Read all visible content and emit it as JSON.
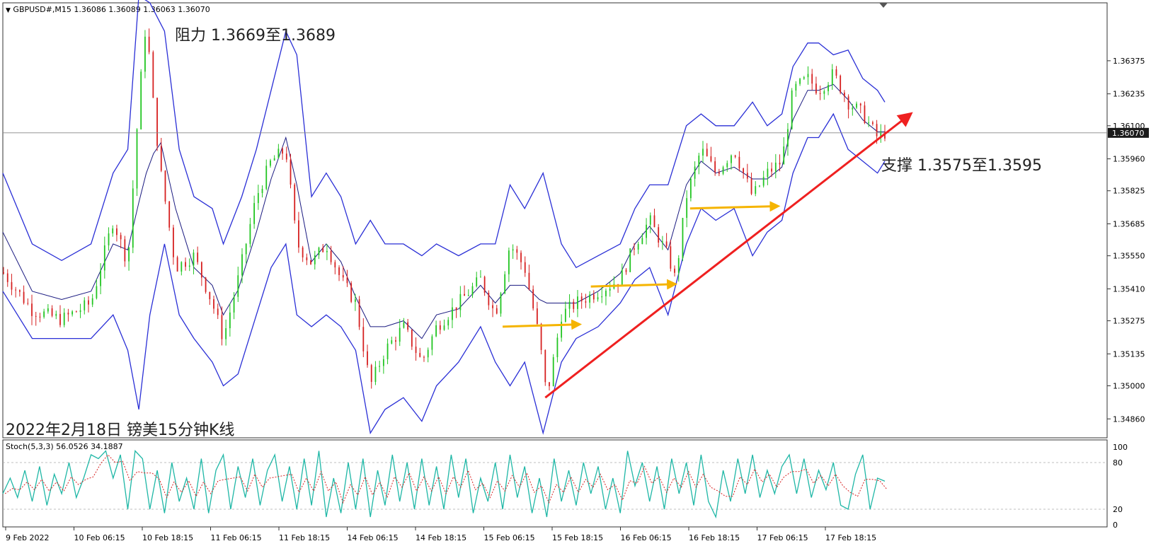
{
  "header": {
    "symbol_line": "GBPUSD#,M15  1.36086 1.36089 1.36063 1.36070"
  },
  "annotations": {
    "resistance": "阻力 1.3669至1.3689",
    "support": "支撑 1.3575至1.3595",
    "caption": "2022年2月18日 镑美15分钟K线"
  },
  "indicator": {
    "label": "Stoch(5,3,3) 56.0526 34.1887",
    "levels": [
      "100",
      "80",
      "20",
      "0"
    ]
  },
  "chart_data": {
    "type": "candlestick",
    "title": "GBPUSD#,M15",
    "current_price": "1.36070",
    "price_ticks": [
      "1.36375",
      "1.36235",
      "1.36100",
      "1.35960",
      "1.35825",
      "1.35685",
      "1.35550",
      "1.35410",
      "1.35275",
      "1.35135",
      "1.35000",
      "1.34860"
    ],
    "ylim": [
      1.3478,
      1.3662
    ],
    "x_labels": [
      "9 Feb 2022",
      "10 Feb 06:15",
      "10 Feb 18:15",
      "11 Feb 06:15",
      "11 Feb 18:15",
      "14 Feb 06:15",
      "14 Feb 18:15",
      "15 Feb 06:15",
      "15 Feb 18:15",
      "16 Feb 06:15",
      "16 Feb 18:15",
      "17 Feb 06:15",
      "17 Feb 18:15"
    ],
    "price_path": [
      [
        0,
        1.3548
      ],
      [
        40,
        1.3532
      ],
      [
        80,
        1.3528
      ],
      [
        120,
        1.3535
      ],
      [
        150,
        1.357
      ],
      [
        170,
        1.3552
      ],
      [
        185,
        1.362
      ],
      [
        195,
        1.3655
      ],
      [
        205,
        1.3618
      ],
      [
        215,
        1.359
      ],
      [
        235,
        1.355
      ],
      [
        260,
        1.3555
      ],
      [
        285,
        1.3535
      ],
      [
        300,
        1.352
      ],
      [
        320,
        1.3545
      ],
      [
        345,
        1.358
      ],
      [
        365,
        1.3595
      ],
      [
        385,
        1.36
      ],
      [
        400,
        1.356
      ],
      [
        420,
        1.3552
      ],
      [
        440,
        1.356
      ],
      [
        460,
        1.3545
      ],
      [
        480,
        1.3535
      ],
      [
        500,
        1.35
      ],
      [
        520,
        1.3515
      ],
      [
        545,
        1.3525
      ],
      [
        570,
        1.351
      ],
      [
        590,
        1.3525
      ],
      [
        620,
        1.3535
      ],
      [
        650,
        1.3545
      ],
      [
        670,
        1.353
      ],
      [
        690,
        1.356
      ],
      [
        710,
        1.355
      ],
      [
        730,
        1.352
      ],
      [
        740,
        1.3495
      ],
      [
        760,
        1.353
      ],
      [
        780,
        1.3535
      ],
      [
        810,
        1.354
      ],
      [
        840,
        1.3545
      ],
      [
        860,
        1.356
      ],
      [
        880,
        1.357
      ],
      [
        905,
        1.3555
      ],
      [
        915,
        1.3545
      ],
      [
        930,
        1.358
      ],
      [
        950,
        1.36
      ],
      [
        970,
        1.359
      ],
      [
        995,
        1.36
      ],
      [
        1020,
        1.358
      ],
      [
        1040,
        1.359
      ],
      [
        1060,
        1.3595
      ],
      [
        1075,
        1.3625
      ],
      [
        1095,
        1.363
      ],
      [
        1110,
        1.3625
      ],
      [
        1130,
        1.3632
      ],
      [
        1150,
        1.362
      ],
      [
        1170,
        1.3615
      ],
      [
        1190,
        1.3605
      ],
      [
        1200,
        1.3607
      ]
    ],
    "bollinger_upper": [
      [
        0,
        1.359
      ],
      [
        40,
        1.356
      ],
      [
        80,
        1.3553
      ],
      [
        120,
        1.356
      ],
      [
        150,
        1.359
      ],
      [
        170,
        1.36
      ],
      [
        185,
        1.3665
      ],
      [
        200,
        1.3662
      ],
      [
        220,
        1.365
      ],
      [
        240,
        1.36
      ],
      [
        260,
        1.358
      ],
      [
        285,
        1.3575
      ],
      [
        300,
        1.356
      ],
      [
        325,
        1.358
      ],
      [
        345,
        1.36
      ],
      [
        365,
        1.3625
      ],
      [
        385,
        1.365
      ],
      [
        400,
        1.364
      ],
      [
        420,
        1.358
      ],
      [
        440,
        1.359
      ],
      [
        460,
        1.358
      ],
      [
        480,
        1.356
      ],
      [
        500,
        1.357
      ],
      [
        520,
        1.356
      ],
      [
        545,
        1.356
      ],
      [
        570,
        1.3555
      ],
      [
        590,
        1.356
      ],
      [
        620,
        1.3555
      ],
      [
        650,
        1.356
      ],
      [
        670,
        1.356
      ],
      [
        690,
        1.3585
      ],
      [
        710,
        1.3575
      ],
      [
        735,
        1.359
      ],
      [
        760,
        1.356
      ],
      [
        780,
        1.355
      ],
      [
        810,
        1.3555
      ],
      [
        840,
        1.356
      ],
      [
        860,
        1.3575
      ],
      [
        880,
        1.3585
      ],
      [
        905,
        1.3585
      ],
      [
        930,
        1.361
      ],
      [
        950,
        1.3615
      ],
      [
        970,
        1.361
      ],
      [
        995,
        1.361
      ],
      [
        1020,
        1.362
      ],
      [
        1040,
        1.361
      ],
      [
        1060,
        1.3615
      ],
      [
        1075,
        1.3635
      ],
      [
        1095,
        1.3645
      ],
      [
        1110,
        1.3645
      ],
      [
        1130,
        1.364
      ],
      [
        1150,
        1.3642
      ],
      [
        1170,
        1.363
      ],
      [
        1190,
        1.3625
      ],
      [
        1200,
        1.362
      ]
    ],
    "bollinger_lower": [
      [
        0,
        1.354
      ],
      [
        40,
        1.352
      ],
      [
        80,
        1.352
      ],
      [
        120,
        1.352
      ],
      [
        150,
        1.353
      ],
      [
        170,
        1.3515
      ],
      [
        185,
        1.349
      ],
      [
        200,
        1.353
      ],
      [
        220,
        1.356
      ],
      [
        240,
        1.353
      ],
      [
        260,
        1.352
      ],
      [
        285,
        1.351
      ],
      [
        300,
        1.35
      ],
      [
        320,
        1.3505
      ],
      [
        345,
        1.353
      ],
      [
        365,
        1.355
      ],
      [
        385,
        1.356
      ],
      [
        400,
        1.353
      ],
      [
        420,
        1.3525
      ],
      [
        440,
        1.353
      ],
      [
        460,
        1.3525
      ],
      [
        480,
        1.3515
      ],
      [
        500,
        1.348
      ],
      [
        520,
        1.349
      ],
      [
        545,
        1.3495
      ],
      [
        570,
        1.3485
      ],
      [
        590,
        1.35
      ],
      [
        620,
        1.351
      ],
      [
        650,
        1.3525
      ],
      [
        670,
        1.351
      ],
      [
        690,
        1.35
      ],
      [
        710,
        1.351
      ],
      [
        735,
        1.348
      ],
      [
        760,
        1.351
      ],
      [
        780,
        1.352
      ],
      [
        810,
        1.3525
      ],
      [
        840,
        1.3535
      ],
      [
        860,
        1.3545
      ],
      [
        880,
        1.355
      ],
      [
        905,
        1.353
      ],
      [
        930,
        1.356
      ],
      [
        950,
        1.3575
      ],
      [
        970,
        1.357
      ],
      [
        995,
        1.3575
      ],
      [
        1020,
        1.3555
      ],
      [
        1040,
        1.3565
      ],
      [
        1060,
        1.357
      ],
      [
        1075,
        1.359
      ],
      [
        1095,
        1.3605
      ],
      [
        1110,
        1.3605
      ],
      [
        1130,
        1.3615
      ],
      [
        1150,
        1.36
      ],
      [
        1170,
        1.3595
      ],
      [
        1190,
        1.359
      ],
      [
        1200,
        1.3595
      ]
    ],
    "stoch_path": [
      [
        0,
        40
      ],
      [
        10,
        60
      ],
      [
        20,
        35
      ],
      [
        30,
        70
      ],
      [
        40,
        30
      ],
      [
        50,
        75
      ],
      [
        60,
        25
      ],
      [
        70,
        65
      ],
      [
        80,
        40
      ],
      [
        90,
        80
      ],
      [
        100,
        35
      ],
      [
        110,
        60
      ],
      [
        120,
        90
      ],
      [
        130,
        85
      ],
      [
        140,
        95
      ],
      [
        150,
        60
      ],
      [
        160,
        90
      ],
      [
        170,
        20
      ],
      [
        180,
        95
      ],
      [
        190,
        85
      ],
      [
        200,
        20
      ],
      [
        210,
        70
      ],
      [
        220,
        15
      ],
      [
        230,
        80
      ],
      [
        240,
        30
      ],
      [
        250,
        60
      ],
      [
        260,
        20
      ],
      [
        270,
        85
      ],
      [
        280,
        15
      ],
      [
        290,
        70
      ],
      [
        300,
        90
      ],
      [
        310,
        20
      ],
      [
        320,
        75
      ],
      [
        330,
        35
      ],
      [
        340,
        85
      ],
      [
        350,
        25
      ],
      [
        360,
        70
      ],
      [
        370,
        90
      ],
      [
        380,
        30
      ],
      [
        390,
        75
      ],
      [
        400,
        20
      ],
      [
        410,
        85
      ],
      [
        420,
        25
      ],
      [
        430,
        95
      ],
      [
        440,
        10
      ],
      [
        450,
        60
      ],
      [
        460,
        15
      ],
      [
        470,
        80
      ],
      [
        480,
        20
      ],
      [
        490,
        85
      ],
      [
        500,
        10
      ],
      [
        510,
        70
      ],
      [
        520,
        25
      ],
      [
        530,
        90
      ],
      [
        540,
        30
      ],
      [
        550,
        80
      ],
      [
        560,
        20
      ],
      [
        570,
        85
      ],
      [
        580,
        25
      ],
      [
        590,
        75
      ],
      [
        600,
        20
      ],
      [
        610,
        90
      ],
      [
        620,
        35
      ],
      [
        630,
        85
      ],
      [
        640,
        15
      ],
      [
        650,
        60
      ],
      [
        660,
        30
      ],
      [
        670,
        80
      ],
      [
        680,
        20
      ],
      [
        690,
        90
      ],
      [
        700,
        35
      ],
      [
        710,
        75
      ],
      [
        720,
        15
      ],
      [
        730,
        60
      ],
      [
        740,
        10
      ],
      [
        750,
        85
      ],
      [
        760,
        30
      ],
      [
        770,
        70
      ],
      [
        780,
        25
      ],
      [
        790,
        80
      ],
      [
        800,
        40
      ],
      [
        810,
        75
      ],
      [
        820,
        20
      ],
      [
        830,
        60
      ],
      [
        840,
        15
      ],
      [
        850,
        95
      ],
      [
        860,
        50
      ],
      [
        870,
        80
      ],
      [
        880,
        30
      ],
      [
        890,
        75
      ],
      [
        900,
        20
      ],
      [
        910,
        85
      ],
      [
        920,
        40
      ],
      [
        930,
        80
      ],
      [
        940,
        25
      ],
      [
        950,
        90
      ],
      [
        960,
        30
      ],
      [
        970,
        10
      ],
      [
        980,
        70
      ],
      [
        990,
        30
      ],
      [
        1000,
        85
      ],
      [
        1010,
        40
      ],
      [
        1020,
        90
      ],
      [
        1030,
        35
      ],
      [
        1040,
        70
      ],
      [
        1050,
        40
      ],
      [
        1060,
        75
      ],
      [
        1070,
        90
      ],
      [
        1080,
        40
      ],
      [
        1090,
        85
      ],
      [
        1100,
        35
      ],
      [
        1110,
        70
      ],
      [
        1120,
        45
      ],
      [
        1130,
        80
      ],
      [
        1140,
        25
      ],
      [
        1150,
        20
      ],
      [
        1160,
        65
      ],
      [
        1170,
        90
      ],
      [
        1180,
        20
      ],
      [
        1190,
        60
      ],
      [
        1200,
        56
      ]
    ],
    "trendline": [
      [
        738,
        1.3495
      ],
      [
        1235,
        1.3615
      ]
    ],
    "support_arrows": [
      [
        [
          680,
          1.3525
        ],
        [
          785,
          1.3526
        ]
      ],
      [
        [
          800,
          1.3542
        ],
        [
          915,
          1.3543
        ]
      ],
      [
        [
          935,
          1.3575
        ],
        [
          1055,
          1.3576
        ]
      ]
    ],
    "stoch_ylim": [
      0,
      100
    ]
  },
  "colors": {
    "upper_lower_band": "#2a2fd6",
    "middle_band": "#1a1a80",
    "bull": "#22c522",
    "bear": "#d62020",
    "trendline": "#ef2020",
    "arrow": "#f5b400",
    "stoch_main": "#1fb7a6",
    "stoch_signal": "#d62020",
    "current_price_tag": "#1a1a1a"
  }
}
